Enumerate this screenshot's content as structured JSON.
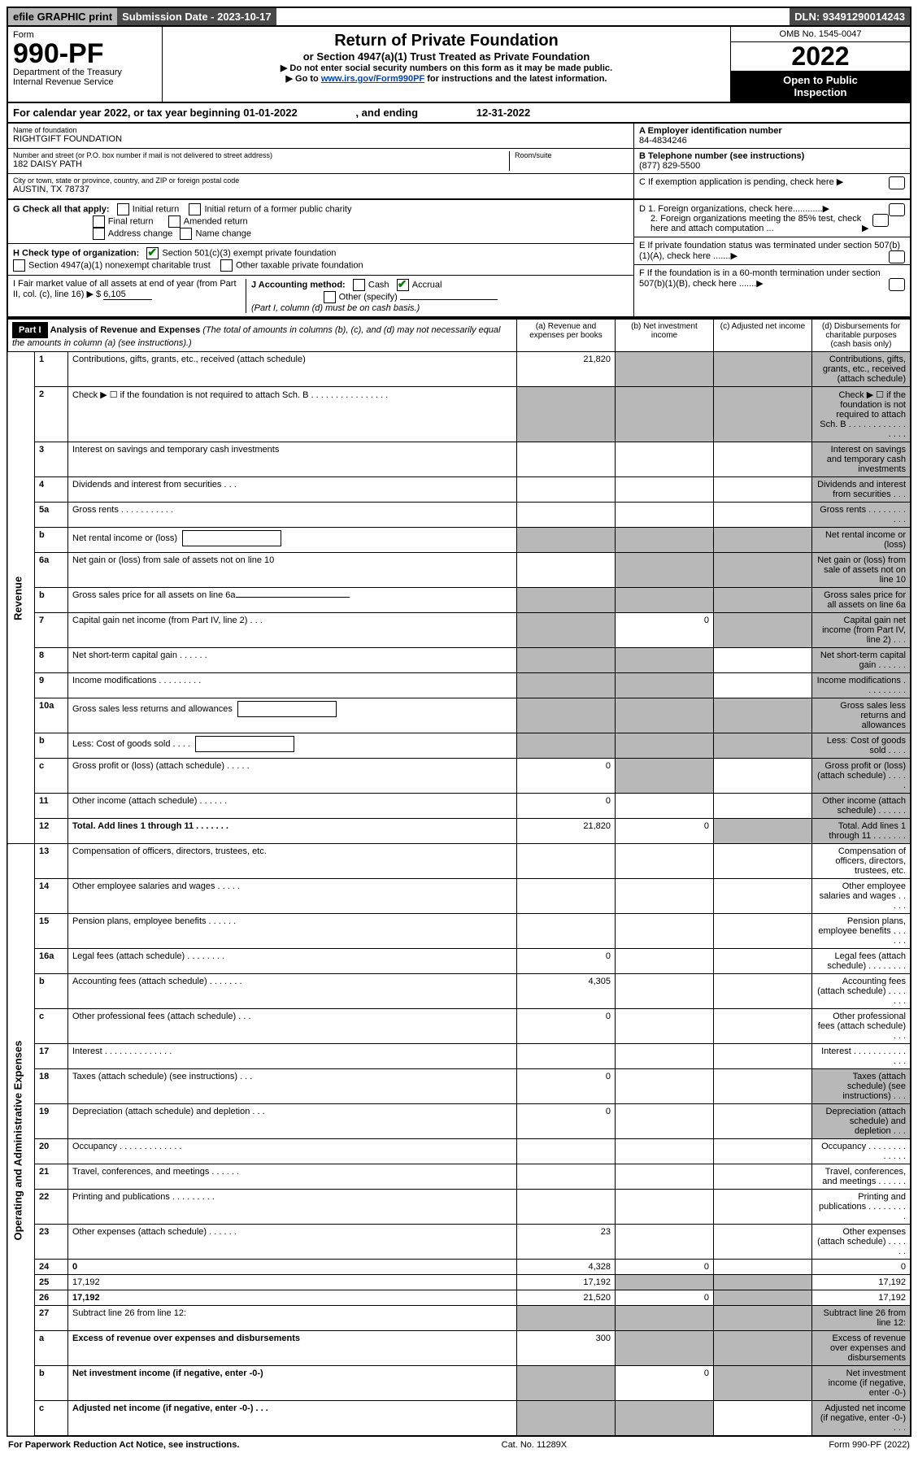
{
  "top": {
    "efile": "efile GRAPHIC print",
    "submission": "Submission Date - 2023-10-17",
    "dln": "DLN: 93491290014243"
  },
  "header": {
    "form_word": "Form",
    "form_no": "990-PF",
    "dept": "Department of the Treasury",
    "irs": "Internal Revenue Service",
    "title": "Return of Private Foundation",
    "subtitle": "or Section 4947(a)(1) Trust Treated as Private Foundation",
    "note1": "▶ Do not enter social security numbers on this form as it may be made public.",
    "note2_pre": "▶ Go to ",
    "note2_link": "www.irs.gov/Form990PF",
    "note2_post": " for instructions and the latest information.",
    "omb": "OMB No. 1545-0047",
    "year": "2022",
    "open_public1": "Open to Public",
    "open_public2": "Inspection"
  },
  "cal_year": {
    "pre": "For calendar year 2022, or tax year beginning ",
    "start": "01-01-2022",
    "mid": " , and ending ",
    "end": "12-31-2022"
  },
  "info": {
    "name_label": "Name of foundation",
    "name": "RIGHTGIFT FOUNDATION",
    "addr_label": "Number and street (or P.O. box number if mail is not delivered to street address)",
    "addr": "182 DAISY PATH",
    "room_label": "Room/suite",
    "city_label": "City or town, state or province, country, and ZIP or foreign postal code",
    "city": "AUSTIN, TX  78737",
    "ein_label": "A Employer identification number",
    "ein": "84-4834246",
    "phone_label": "B Telephone number (see instructions)",
    "phone": "(877) 829-5500",
    "c_label": "C If exemption application is pending, check here",
    "d1": "D 1. Foreign organizations, check here............",
    "d2": "2. Foreign organizations meeting the 85% test, check here and attach computation ...",
    "e_label": "E  If private foundation status was terminated under section 507(b)(1)(A), check here .......",
    "f_label": "F  If the foundation is in a 60-month termination under section 507(b)(1)(B), check here .......",
    "g_label": "G Check all that apply:",
    "g_opts": [
      "Initial return",
      "Initial return of a former public charity",
      "Final return",
      "Amended return",
      "Address change",
      "Name change"
    ],
    "h_label": "H Check type of organization:",
    "h_opts": [
      "Section 501(c)(3) exempt private foundation",
      "Section 4947(a)(1) nonexempt charitable trust",
      "Other taxable private foundation"
    ],
    "i_label": "I Fair market value of all assets at end of year (from Part II, col. (c), line 16) ▶ $",
    "i_val": "6,105",
    "j_label": "J Accounting method:",
    "j_cash": "Cash",
    "j_accrual": "Accrual",
    "j_other": "Other (specify)",
    "j_note": "(Part I, column (d) must be on cash basis.)"
  },
  "part1": {
    "label": "Part I",
    "title": "Analysis of Revenue and Expenses",
    "title_note": " (The total of amounts in columns (b), (c), and (d) may not necessarily equal the amounts in column (a) (see instructions).)",
    "col_a": "(a)  Revenue and expenses per books",
    "col_b": "(b)  Net investment income",
    "col_c": "(c)  Adjusted net income",
    "col_d": "(d)  Disbursements for charitable purposes (cash basis only)"
  },
  "side_labels": {
    "revenue": "Revenue",
    "expenses": "Operating and Administrative Expenses"
  },
  "rows": [
    {
      "n": "1",
      "d": "Contributions, gifts, grants, etc., received (attach schedule)",
      "a": "21,820",
      "shade": [
        "b",
        "c",
        "d"
      ]
    },
    {
      "n": "2",
      "d": "Check ▶ ☐ if the foundation is not required to attach Sch. B     .  .  .  .  .  .  .  .  .  .  .  .  .  .  .  .",
      "shade": [
        "a",
        "b",
        "c",
        "d"
      ]
    },
    {
      "n": "3",
      "d": "Interest on savings and temporary cash investments",
      "shade": [
        "d"
      ]
    },
    {
      "n": "4",
      "d": "Dividends and interest from securities   .   .   .",
      "shade": [
        "d"
      ]
    },
    {
      "n": "5a",
      "d": "Gross rents    .   .   .   .   .   .   .   .   .   .   .",
      "shade": [
        "d"
      ]
    },
    {
      "n": "b",
      "d": "Net rental income or (loss)",
      "inline": true,
      "shade": [
        "a",
        "b",
        "c",
        "d"
      ]
    },
    {
      "n": "6a",
      "d": "Net gain or (loss) from sale of assets not on line 10",
      "shade": [
        "b",
        "c",
        "d"
      ]
    },
    {
      "n": "b",
      "d": "Gross sales price for all assets on line 6a",
      "inline": true,
      "uline": true,
      "shade": [
        "a",
        "b",
        "c",
        "d"
      ]
    },
    {
      "n": "7",
      "d": "Capital gain net income (from Part IV, line 2)   .   .   .",
      "b": "0",
      "shade": [
        "a",
        "c",
        "d"
      ]
    },
    {
      "n": "8",
      "d": "Net short-term capital gain   .   .   .   .   .   .",
      "shade": [
        "a",
        "b",
        "d"
      ]
    },
    {
      "n": "9",
      "d": "Income modifications  .   .   .   .   .   .   .   .   .",
      "shade": [
        "a",
        "b",
        "d"
      ]
    },
    {
      "n": "10a",
      "d": "Gross sales less returns and allowances",
      "inline": true,
      "shade": [
        "a",
        "b",
        "c",
        "d"
      ]
    },
    {
      "n": "b",
      "d": "Less: Cost of goods sold    .   .   .   .",
      "inline": true,
      "shade": [
        "a",
        "b",
        "c",
        "d"
      ]
    },
    {
      "n": "c",
      "d": "Gross profit or (loss) (attach schedule)    .   .   .   .   .",
      "a": "0",
      "shade": [
        "b",
        "d"
      ]
    },
    {
      "n": "11",
      "d": "Other income (attach schedule)    .   .   .   .   .   .",
      "a": "0",
      "shade": [
        "d"
      ]
    },
    {
      "n": "12",
      "d": "Total. Add lines 1 through 11   .   .   .   .   .   .   .",
      "a": "21,820",
      "b": "0",
      "bold": true,
      "shade": [
        "c",
        "d"
      ]
    }
  ],
  "rows_exp": [
    {
      "n": "13",
      "d": "Compensation of officers, directors, trustees, etc."
    },
    {
      "n": "14",
      "d": "Other employee salaries and wages   .   .   .   .   ."
    },
    {
      "n": "15",
      "d": "Pension plans, employee benefits  .   .   .   .   .   ."
    },
    {
      "n": "16a",
      "d": "Legal fees (attach schedule)  .   .   .   .   .   .   .   .",
      "a": "0"
    },
    {
      "n": "b",
      "d": "Accounting fees (attach schedule)  .   .   .   .   .   .   .",
      "a": "4,305"
    },
    {
      "n": "c",
      "d": "Other professional fees (attach schedule)    .   .   .",
      "a": "0"
    },
    {
      "n": "17",
      "d": "Interest  .   .   .   .   .   .   .   .   .   .   .   .   .   ."
    },
    {
      "n": "18",
      "d": "Taxes (attach schedule) (see instructions)     .   .   .",
      "a": "0",
      "shade": [
        "d"
      ]
    },
    {
      "n": "19",
      "d": "Depreciation (attach schedule) and depletion   .   .   .",
      "a": "0",
      "shade": [
        "d"
      ]
    },
    {
      "n": "20",
      "d": "Occupancy  .   .   .   .   .   .   .   .   .   .   .   .   ."
    },
    {
      "n": "21",
      "d": "Travel, conferences, and meetings  .   .   .   .   .   ."
    },
    {
      "n": "22",
      "d": "Printing and publications  .   .   .   .   .   .   .   .   ."
    },
    {
      "n": "23",
      "d": "Other expenses (attach schedule)  .   .   .   .   .   .",
      "a": "23"
    },
    {
      "n": "24",
      "d": "0",
      "a": "4,328",
      "b": "0",
      "bold": true
    },
    {
      "n": "25",
      "d": "17,192",
      "a": "17,192",
      "shade": [
        "b",
        "c"
      ]
    },
    {
      "n": "26",
      "d": "17,192",
      "a": "21,520",
      "b": "0",
      "bold": true,
      "shade": [
        "c"
      ]
    },
    {
      "n": "27",
      "d": "Subtract line 26 from line 12:",
      "shade": [
        "a",
        "b",
        "c",
        "d"
      ]
    },
    {
      "n": "a",
      "d": "Excess of revenue over expenses and disbursements",
      "a": "300",
      "bold": true,
      "shade": [
        "b",
        "c",
        "d"
      ]
    },
    {
      "n": "b",
      "d": "Net investment income (if negative, enter -0-)",
      "b": "0",
      "bold": true,
      "shade": [
        "a",
        "c",
        "d"
      ]
    },
    {
      "n": "c",
      "d": "Adjusted net income (if negative, enter -0-)   .   .   .",
      "bold": true,
      "shade": [
        "a",
        "b",
        "d"
      ]
    }
  ],
  "footer": {
    "left": "For Paperwork Reduction Act Notice, see instructions.",
    "mid": "Cat. No. 11289X",
    "right": "Form 990-PF (2022)"
  }
}
